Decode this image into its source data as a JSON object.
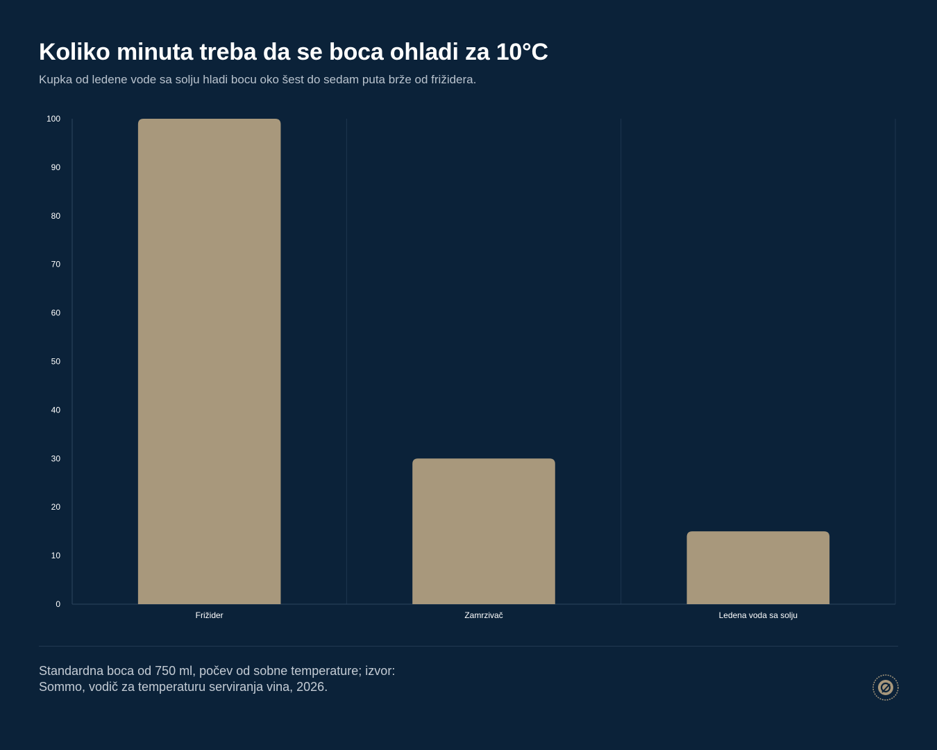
{
  "header": {
    "title": "Koliko minuta treba da se boca ohladi za 10°C",
    "subtitle": "Kupka od ledene vode sa solju hladi bocu oko šest do sedam puta brže od frižidera."
  },
  "footer": {
    "note": "Standardna boca od 750 ml, počev od sobne temperature; izvor: Sommo, vodič za temperaturu serviranja vina, 2026."
  },
  "colors": {
    "background": "#0b2239",
    "bar": "#a8987c",
    "grid": "#1f3750",
    "axis": "#2c4560",
    "tick_text": "#ffffff"
  },
  "chart_data": {
    "type": "bar",
    "categories": [
      "Frižider",
      "Zamrzivač",
      "Ledena voda sa solju"
    ],
    "values": [
      100,
      30,
      15
    ],
    "ylim": [
      0,
      100
    ],
    "yticks": [
      0,
      10,
      20,
      30,
      40,
      50,
      60,
      70,
      80,
      90,
      100
    ],
    "xlabel": "",
    "ylabel": "",
    "grid": "vertical",
    "legend": "none"
  }
}
